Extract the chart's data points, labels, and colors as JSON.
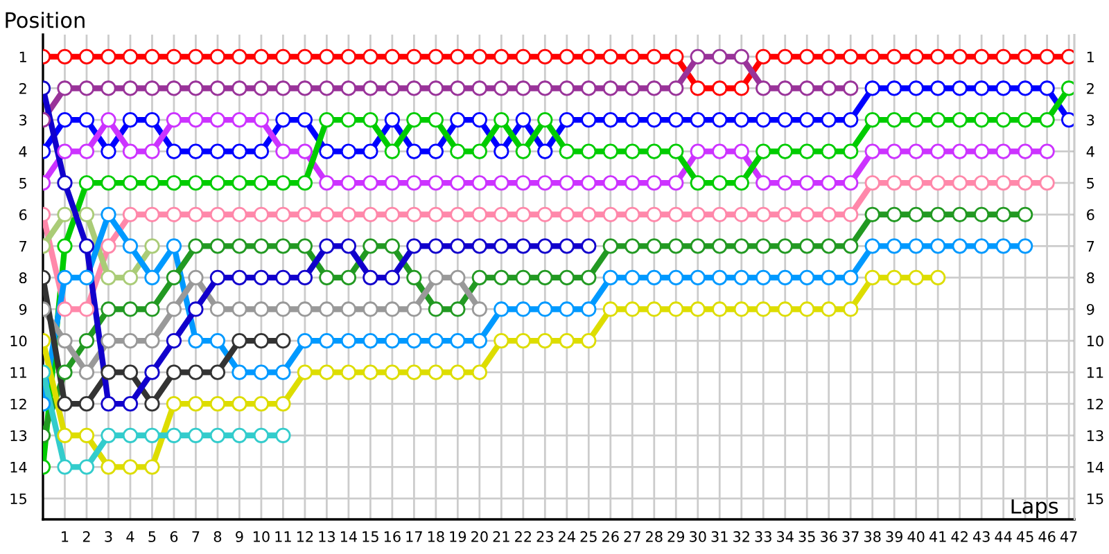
{
  "chart_data": {
    "type": "line",
    "xlabel": "Laps",
    "ylabel": "Position",
    "x": [
      0,
      1,
      2,
      3,
      4,
      5,
      6,
      7,
      8,
      9,
      10,
      11,
      12,
      13,
      14,
      15,
      16,
      17,
      18,
      19,
      20,
      21,
      22,
      23,
      24,
      25,
      26,
      27,
      28,
      29,
      30,
      31,
      32,
      33,
      34,
      35,
      36,
      37,
      38,
      39,
      40,
      41,
      42,
      43,
      44,
      45,
      46,
      47
    ],
    "xlim": [
      0,
      47.25
    ],
    "xticks": [
      1,
      2,
      3,
      4,
      5,
      6,
      7,
      8,
      9,
      10,
      11,
      12,
      13,
      14,
      15,
      16,
      17,
      18,
      19,
      20,
      21,
      22,
      23,
      24,
      25,
      26,
      27,
      28,
      29,
      30,
      31,
      32,
      33,
      34,
      35,
      36,
      37,
      38,
      39,
      40,
      41,
      42,
      43,
      44,
      45,
      46,
      47
    ],
    "ylim": [
      15.66,
      0.3
    ],
    "yticks": [
      1,
      2,
      3,
      4,
      5,
      6,
      7,
      8,
      9,
      10,
      11,
      12,
      13,
      14,
      15
    ],
    "y2lim": [
      15.66,
      0.3
    ],
    "y2ticks": [
      1,
      2,
      3,
      4,
      5,
      6,
      7,
      8,
      9,
      10,
      11,
      12,
      13,
      14,
      15
    ],
    "grid": true,
    "marker": "circle",
    "line_style": "solid",
    "legend": false,
    "series": [
      {
        "color": "#ff0000",
        "values": [
          1,
          1,
          1,
          1,
          1,
          1,
          1,
          1,
          1,
          1,
          1,
          1,
          1,
          1,
          1,
          1,
          1,
          1,
          1,
          1,
          1,
          1,
          1,
          1,
          1,
          1,
          1,
          1,
          1,
          1,
          2,
          2,
          2,
          1,
          1,
          1,
          1,
          1,
          1,
          1,
          1,
          1,
          1,
          1,
          1,
          1,
          1,
          1
        ]
      },
      {
        "color": "#993399",
        "values": [
          3,
          2,
          2,
          2,
          2,
          2,
          2,
          2,
          2,
          2,
          2,
          2,
          2,
          2,
          2,
          2,
          2,
          2,
          2,
          2,
          2,
          2,
          2,
          2,
          2,
          2,
          2,
          2,
          2,
          2,
          1,
          1,
          1,
          2,
          2,
          2,
          2,
          2,
          null,
          null,
          null,
          null,
          null,
          null,
          null,
          null,
          null,
          null
        ]
      },
      {
        "color": "#0000ff",
        "values": [
          4,
          3,
          3,
          4,
          3,
          3,
          4,
          4,
          4,
          4,
          4,
          3,
          3,
          4,
          4,
          4,
          3,
          4,
          4,
          3,
          3,
          4,
          3,
          4,
          3,
          3,
          3,
          3,
          3,
          3,
          3,
          3,
          3,
          3,
          3,
          3,
          3,
          3,
          2,
          2,
          2,
          2,
          2,
          2,
          2,
          2,
          2,
          3
        ]
      },
      {
        "color": "#cc33ff",
        "values": [
          5,
          4,
          4,
          3,
          4,
          4,
          3,
          3,
          3,
          3,
          3,
          4,
          4,
          5,
          5,
          5,
          5,
          5,
          5,
          5,
          5,
          5,
          5,
          5,
          5,
          5,
          5,
          5,
          5,
          5,
          4,
          4,
          4,
          5,
          5,
          5,
          5,
          5,
          4,
          4,
          4,
          4,
          4,
          4,
          4,
          4,
          4,
          null
        ]
      },
      {
        "color": "#00cc00",
        "values": [
          14,
          7,
          5,
          5,
          5,
          5,
          5,
          5,
          5,
          5,
          5,
          5,
          5,
          3,
          3,
          3,
          4,
          3,
          3,
          4,
          4,
          3,
          4,
          3,
          4,
          4,
          4,
          4,
          4,
          4,
          5,
          5,
          5,
          4,
          4,
          4,
          4,
          4,
          3,
          3,
          3,
          3,
          3,
          3,
          3,
          3,
          3,
          2
        ]
      },
      {
        "color": "#ff88aa",
        "values": [
          6,
          9,
          9,
          7,
          6,
          6,
          6,
          6,
          6,
          6,
          6,
          6,
          6,
          6,
          6,
          6,
          6,
          6,
          6,
          6,
          6,
          6,
          6,
          6,
          6,
          6,
          6,
          6,
          6,
          6,
          6,
          6,
          6,
          6,
          6,
          6,
          6,
          6,
          5,
          5,
          5,
          5,
          5,
          5,
          5,
          5,
          5,
          null
        ]
      },
      {
        "color": "#aacc77",
        "values": [
          7,
          6,
          6,
          8,
          8,
          7,
          null,
          null,
          null,
          null,
          null,
          null,
          null,
          null,
          null,
          null,
          null,
          null,
          null,
          null,
          null,
          null,
          null,
          null,
          null,
          null,
          null,
          null,
          null,
          null,
          null,
          null,
          null,
          null,
          null,
          null,
          null,
          null,
          null,
          null,
          null,
          null,
          null,
          null,
          null,
          null,
          null,
          null
        ]
      },
      {
        "color": "#0099ff",
        "values": [
          12,
          8,
          8,
          6,
          7,
          8,
          7,
          10,
          10,
          11,
          11,
          11,
          10,
          10,
          10,
          10,
          10,
          10,
          10,
          10,
          10,
          9,
          9,
          9,
          9,
          9,
          8,
          8,
          8,
          8,
          8,
          8,
          8,
          8,
          8,
          8,
          8,
          8,
          7,
          7,
          7,
          7,
          7,
          7,
          7,
          7,
          null,
          null
        ]
      },
      {
        "color": "#229922",
        "values": [
          13,
          11,
          10,
          9,
          9,
          9,
          8,
          7,
          7,
          7,
          7,
          7,
          7,
          8,
          8,
          7,
          7,
          8,
          9,
          9,
          8,
          8,
          8,
          8,
          8,
          8,
          7,
          7,
          7,
          7,
          7,
          7,
          7,
          7,
          7,
          7,
          7,
          7,
          6,
          6,
          6,
          6,
          6,
          6,
          6,
          6,
          null,
          null
        ]
      },
      {
        "color": "#999999",
        "values": [
          9,
          10,
          11,
          10,
          10,
          10,
          9,
          8,
          9,
          9,
          9,
          9,
          9,
          9,
          9,
          9,
          9,
          9,
          8,
          8,
          9,
          null,
          null,
          null,
          null,
          null,
          null,
          null,
          null,
          null,
          null,
          null,
          null,
          null,
          null,
          null,
          null,
          null,
          null,
          null,
          null,
          null,
          null,
          null,
          null,
          null,
          null,
          null
        ]
      },
      {
        "color": "#333333",
        "values": [
          8,
          12,
          12,
          11,
          11,
          12,
          11,
          11,
          11,
          10,
          10,
          10,
          null,
          null,
          null,
          null,
          null,
          null,
          null,
          null,
          null,
          null,
          null,
          null,
          null,
          null,
          null,
          null,
          null,
          null,
          null,
          null,
          null,
          null,
          null,
          null,
          null,
          null,
          null,
          null,
          null,
          null,
          null,
          null,
          null,
          null,
          null,
          null
        ]
      },
      {
        "color": "#dddd00",
        "values": [
          10,
          13,
          13,
          14,
          14,
          14,
          12,
          12,
          12,
          12,
          12,
          12,
          11,
          11,
          11,
          11,
          11,
          11,
          11,
          11,
          11,
          10,
          10,
          10,
          10,
          10,
          9,
          9,
          9,
          9,
          9,
          9,
          9,
          9,
          9,
          9,
          9,
          9,
          8,
          8,
          8,
          8,
          null,
          null,
          null,
          null,
          null,
          null
        ]
      },
      {
        "color": "#33cccc",
        "values": [
          11,
          14,
          14,
          13,
          13,
          13,
          13,
          13,
          13,
          13,
          13,
          13,
          null,
          null,
          null,
          null,
          null,
          null,
          null,
          null,
          null,
          null,
          null,
          null,
          null,
          null,
          null,
          null,
          null,
          null,
          null,
          null,
          null,
          null,
          null,
          null,
          null,
          null,
          null,
          null,
          null,
          null,
          null,
          null,
          null,
          null,
          null,
          null
        ]
      },
      {
        "color": "#1100cc",
        "values": [
          2,
          5,
          7,
          12,
          12,
          11,
          10,
          9,
          8,
          8,
          8,
          8,
          8,
          7,
          7,
          8,
          8,
          7,
          7,
          7,
          7,
          7,
          7,
          7,
          7,
          7,
          null,
          null,
          null,
          null,
          null,
          null,
          null,
          null,
          null,
          null,
          null,
          null,
          null,
          null,
          null,
          null,
          null,
          null,
          null,
          null,
          null,
          null
        ]
      }
    ]
  }
}
